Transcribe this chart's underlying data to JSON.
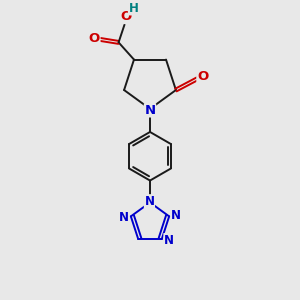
{
  "bg_color": "#e8e8e8",
  "bond_color": "#1a1a1a",
  "N_color": "#0000cc",
  "O_color": "#cc0000",
  "H_color": "#008080",
  "bond_width": 1.4,
  "font_size_atom": 8.5,
  "fig_size": [
    3.0,
    3.0
  ],
  "dpi": 100,
  "xlim": [
    0,
    10
  ],
  "ylim": [
    0,
    10
  ]
}
